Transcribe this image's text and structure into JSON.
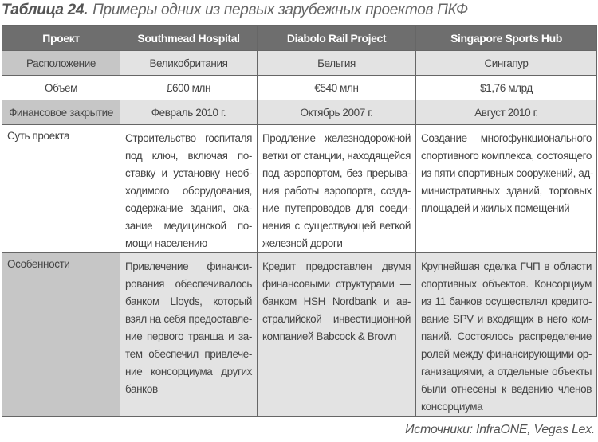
{
  "title": {
    "label": "Таблица 24.",
    "text": "Примеры одних из первых зарубежных проектов ПКФ"
  },
  "header": [
    "Проект",
    "Southmead Hospital",
    "Diabolo Rail Project",
    "Singapore Sports Hub"
  ],
  "rows": [
    {
      "label": "Расположение",
      "values": [
        "Великобритания",
        "Бельгия",
        "Сингапур"
      ]
    },
    {
      "label": "Объем",
      "values": [
        "£600 млн",
        "€540 млн",
        "$1,76 млрд"
      ]
    },
    {
      "label": "Финансовое закрытие",
      "values": [
        "Февраль 2010 г.",
        "Октябрь 2007 г.",
        "Август 2010 г."
      ]
    }
  ],
  "essence": {
    "label": "Суть проекта",
    "values": [
      [
        "Строительство госпиталя",
        "под ключ, включая по-",
        "ставку и установку необ-",
        "ходимого оборудования,",
        "содержание здания, ока-",
        "зание медицинской по-",
        "мощи населению"
      ],
      [
        "Продление железнодорожной",
        "ветки от станции, находящейся",
        "под аэропортом, без прерыва-",
        "ния работы аэропорта, созда-",
        "ние путепроводов для соеди-",
        "нения с существующей веткой",
        "железной дороги"
      ],
      [
        "Создание многофункционального",
        "спортивного комплекса, состоящего",
        "из пяти спортивных сооружений, ад-",
        "министративных зданий, торговых",
        "площадей и жилых помещений"
      ]
    ]
  },
  "features": {
    "label": "Особенности",
    "values": [
      [
        "Привлечение финанси-",
        "рования обеспечивалось",
        "банком Lloyds, который",
        "взял на себя предоставле-",
        "ние первого транша и за-",
        "тем обеспечил привлече-",
        "ние консорциума других",
        "банков"
      ],
      [
        "Кредит предоставлен двумя",
        "финансовыми структурами —",
        "банком HSH Nordbank и ав-",
        "стралийской инвестиционной",
        "компанией Babcock & Brown"
      ],
      [
        "Крупнейшая сделка ГЧП в области",
        "спортивных объектов. Консорциум",
        "из 11 банков осуществлял кредито-",
        "вание SPV и входящих в него ком-",
        "паний. Состоялось распределение",
        "ролей между финансирующими ор-",
        "ганизациями, а отдельные объекты",
        "были отнесены к ведению членов",
        "консорциума"
      ]
    ]
  },
  "source": "Источники: InfraONE, Vegas Lex."
}
